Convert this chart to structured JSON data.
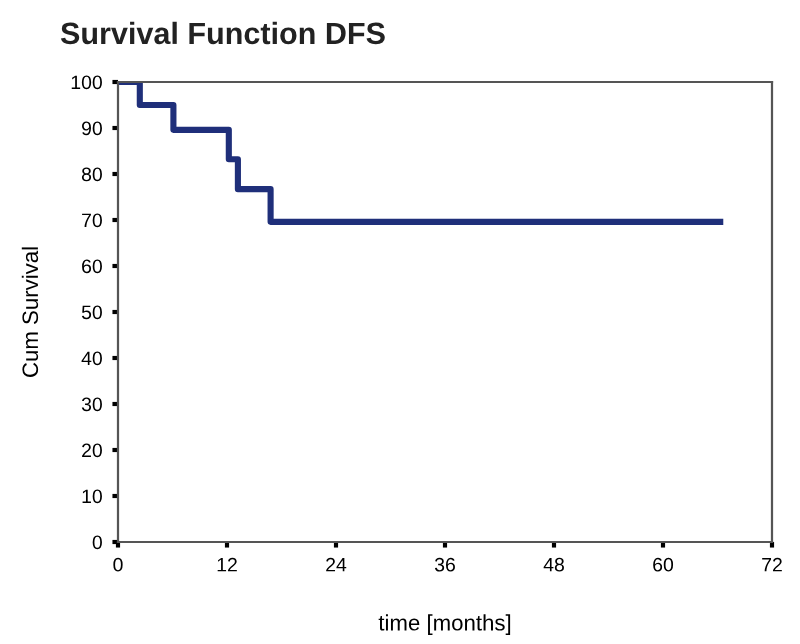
{
  "chart_data": {
    "type": "step",
    "title": "Survival Function DFS",
    "xlabel": "time [months]",
    "ylabel": "Cum Survival",
    "x": [
      0,
      2.4,
      6.1,
      12.2,
      13.2,
      16.8,
      66.3
    ],
    "series": [
      {
        "color": "#1f2f7a",
        "values": [
          100,
          95,
          89.6,
          83.2,
          76.7,
          69.6,
          69.6
        ]
      }
    ],
    "xlim": [
      0,
      72
    ],
    "xticks": [
      0,
      12,
      24,
      36,
      48,
      60,
      72
    ],
    "ylim": [
      0,
      100
    ],
    "yticks": [
      0,
      10,
      20,
      30,
      40,
      50,
      60,
      70,
      80,
      90,
      100
    ],
    "grid": false,
    "legend": false,
    "marker": "none",
    "line_style": "solid"
  }
}
